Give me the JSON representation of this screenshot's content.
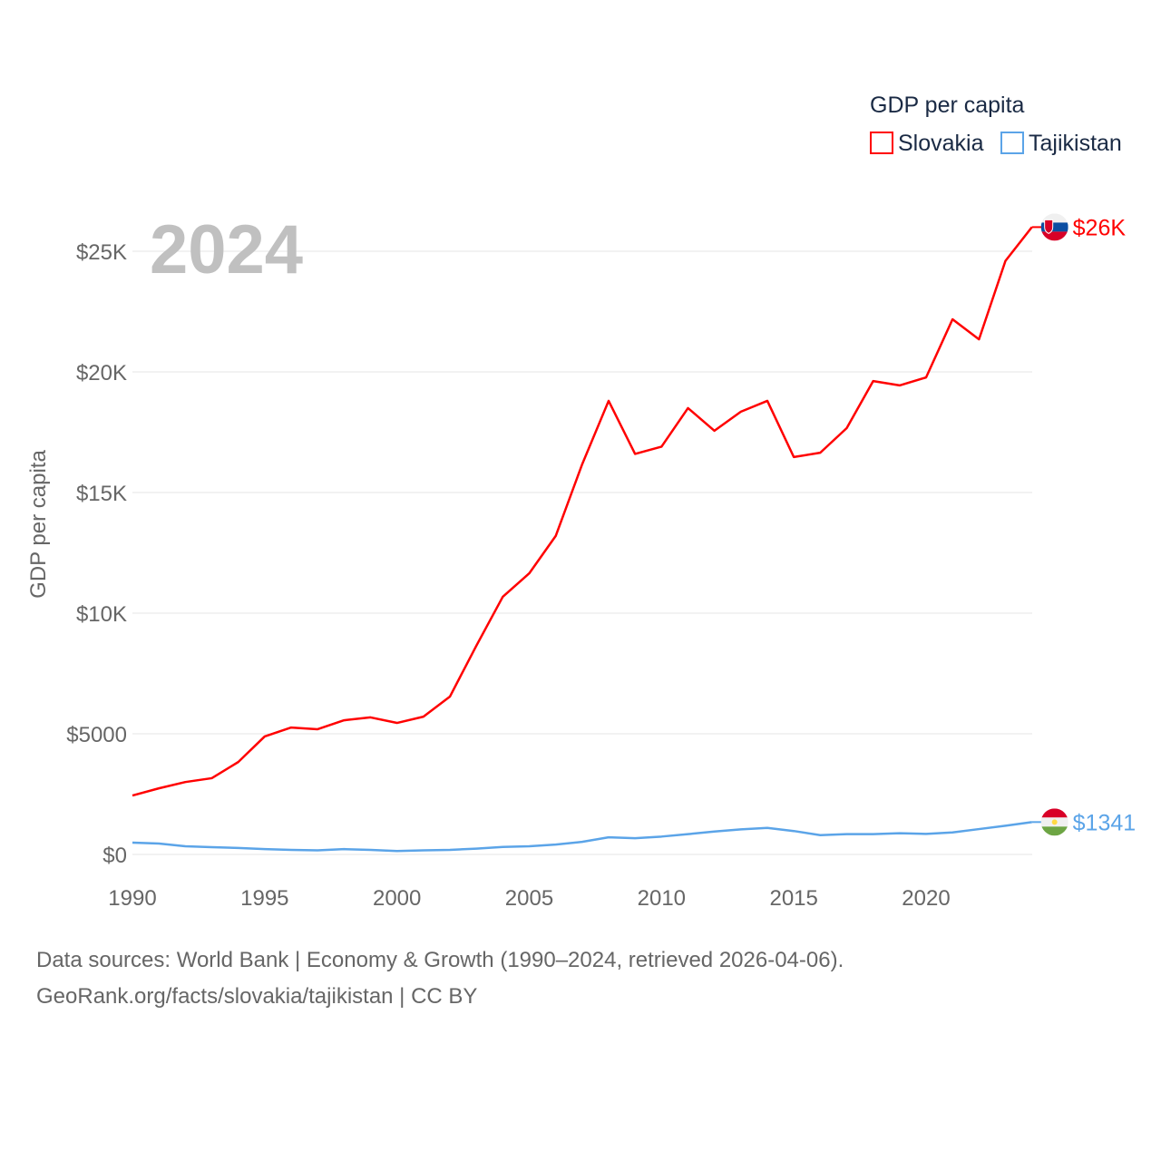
{
  "chart_data": {
    "type": "line",
    "title": "GDP per capita",
    "year_label": "2024",
    "ylabel": "GDP per capita",
    "xlabel": "",
    "xlim": [
      1990,
      2024
    ],
    "ylim": [
      0,
      26500
    ],
    "x_ticks": [
      1990,
      1995,
      2000,
      2005,
      2010,
      2015,
      2020
    ],
    "x_tick_labels": [
      "1990",
      "1995",
      "2000",
      "2005",
      "2010",
      "2015",
      "2020"
    ],
    "y_ticks": [
      0,
      5000,
      10000,
      15000,
      20000,
      25000
    ],
    "y_tick_labels": [
      "$0",
      "$5000",
      "$10K",
      "$15K",
      "$20K",
      "$25K"
    ],
    "grid": true,
    "legend_position": "top-right",
    "x": [
      1990,
      1991,
      1992,
      1993,
      1994,
      1995,
      1996,
      1997,
      1998,
      1999,
      2000,
      2001,
      2002,
      2003,
      2004,
      2005,
      2006,
      2007,
      2008,
      2009,
      2010,
      2011,
      2012,
      2013,
      2014,
      2015,
      2016,
      2017,
      2018,
      2019,
      2020,
      2021,
      2022,
      2023,
      2024
    ],
    "series": [
      {
        "name": "Slovakia",
        "color": "#ff0000",
        "end_label": "$26K",
        "flag": "slovakia-flag",
        "values": [
          2440,
          2740,
          3000,
          3160,
          3830,
          4890,
          5260,
          5190,
          5560,
          5680,
          5450,
          5710,
          6540,
          8650,
          10680,
          11650,
          13200,
          16170,
          18800,
          16600,
          16900,
          18500,
          17560,
          18350,
          18800,
          16470,
          16650,
          17670,
          19620,
          19440,
          19770,
          22180,
          21350,
          24600,
          26000
        ]
      },
      {
        "name": "Tajikistan",
        "color": "#5ba4e8",
        "end_label": "$1341",
        "flag": "tajikistan-flag",
        "values": [
          490,
          450,
          340,
          300,
          270,
          220,
          190,
          170,
          220,
          190,
          140,
          170,
          190,
          240,
          310,
          340,
          410,
          520,
          710,
          670,
          740,
          840,
          950,
          1040,
          1100,
          970,
          800,
          840,
          840,
          880,
          850,
          910,
          1050,
          1190,
          1341
        ]
      }
    ]
  },
  "footer": {
    "line1": "Data sources: World Bank | Economy & Growth (1990–2024, retrieved 2026-04-06).",
    "line2": "GeoRank.org/facts/slovakia/tajikistan | CC BY"
  }
}
